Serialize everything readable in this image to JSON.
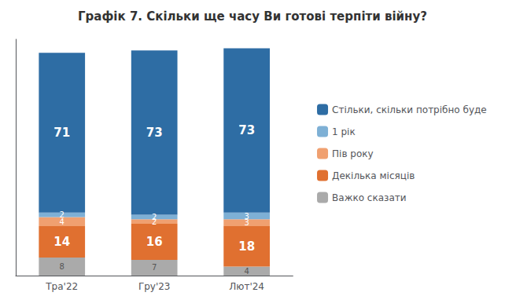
{
  "chart_data": {
    "type": "bar",
    "title": "Графік 7. Скільки ще часу Ви готові терпіти війну?",
    "categories": [
      "Тра'22",
      "Гру'23",
      "Лют'24"
    ],
    "series": [
      {
        "name": "Стільки, скільки потрібно буде",
        "color": "#2E6DA4",
        "values": [
          71,
          73,
          73
        ]
      },
      {
        "name": "1 рік",
        "color": "#7EB0D5",
        "values": [
          2,
          2,
          3
        ]
      },
      {
        "name": "Пів року",
        "color": "#F0A070",
        "values": [
          4,
          2,
          3
        ]
      },
      {
        "name": "Декілька місяців",
        "color": "#E07030",
        "values": [
          14,
          16,
          18
        ]
      },
      {
        "name": "Важко сказати",
        "color": "#AAAAAA",
        "values": [
          8,
          7,
          4
        ]
      }
    ],
    "stacked": true,
    "data_labels": true,
    "ylim": [
      0,
      105
    ],
    "tick_labels": "x",
    "grid": false,
    "legend": "right"
  }
}
